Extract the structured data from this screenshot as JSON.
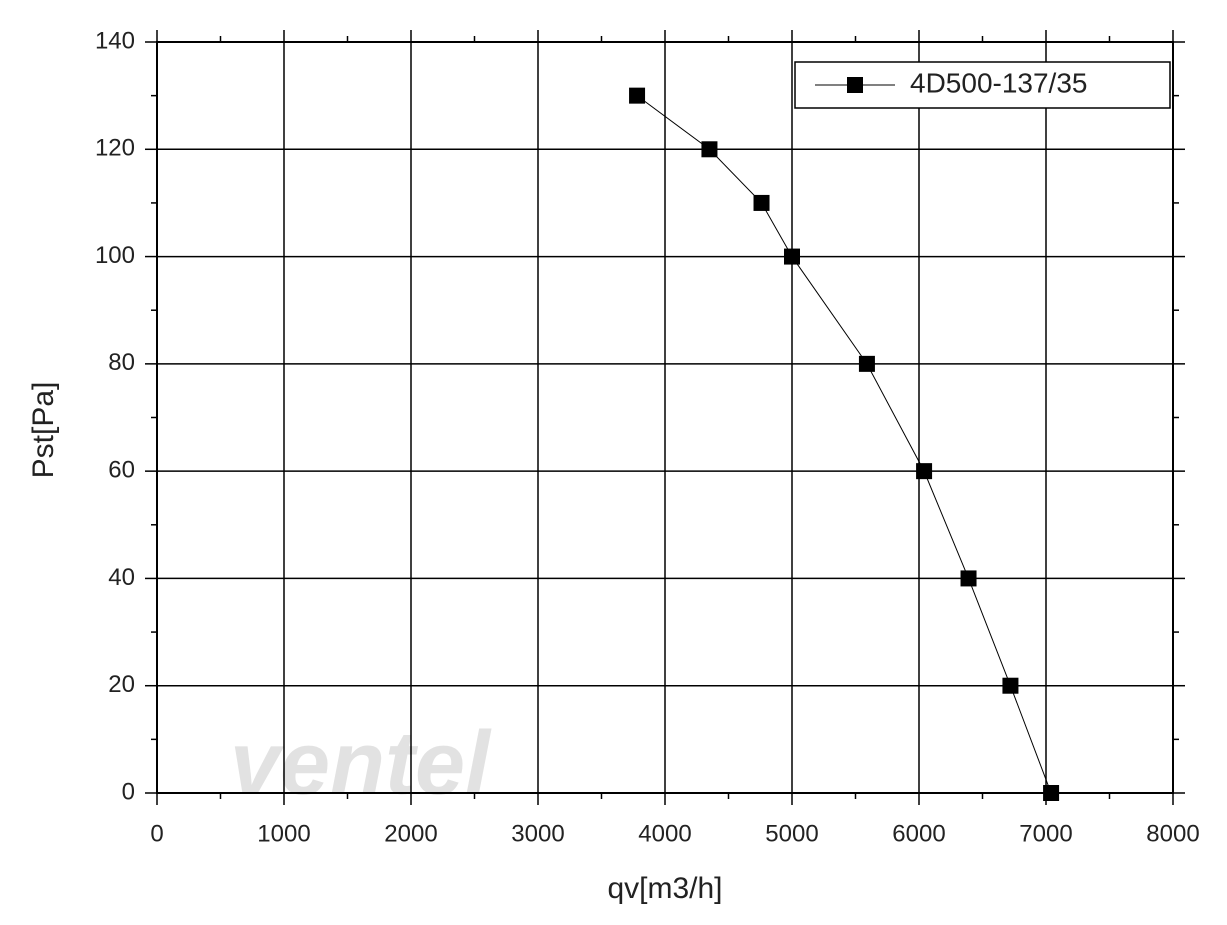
{
  "chart_data": {
    "type": "line",
    "x_label": "qv[m3/h]",
    "y_label": "Pst[Pa]",
    "watermark": "ventel",
    "x": [
      3780,
      4350,
      4760,
      5000,
      5590,
      6040,
      6390,
      6720,
      7040
    ],
    "series": [
      {
        "name": "4D500-137/35",
        "color": "#000000",
        "values": [
          130,
          120,
          110,
          100,
          80,
          60,
          40,
          20,
          0
        ]
      }
    ],
    "xlim": [
      0,
      8000
    ],
    "xticks": [
      0,
      1000,
      2000,
      3000,
      4000,
      5000,
      6000,
      7000,
      8000
    ],
    "ylim": [
      0,
      140
    ],
    "yticks": [
      0,
      20,
      40,
      60,
      80,
      100,
      120,
      140
    ],
    "grid": true,
    "legend": "top-right"
  }
}
